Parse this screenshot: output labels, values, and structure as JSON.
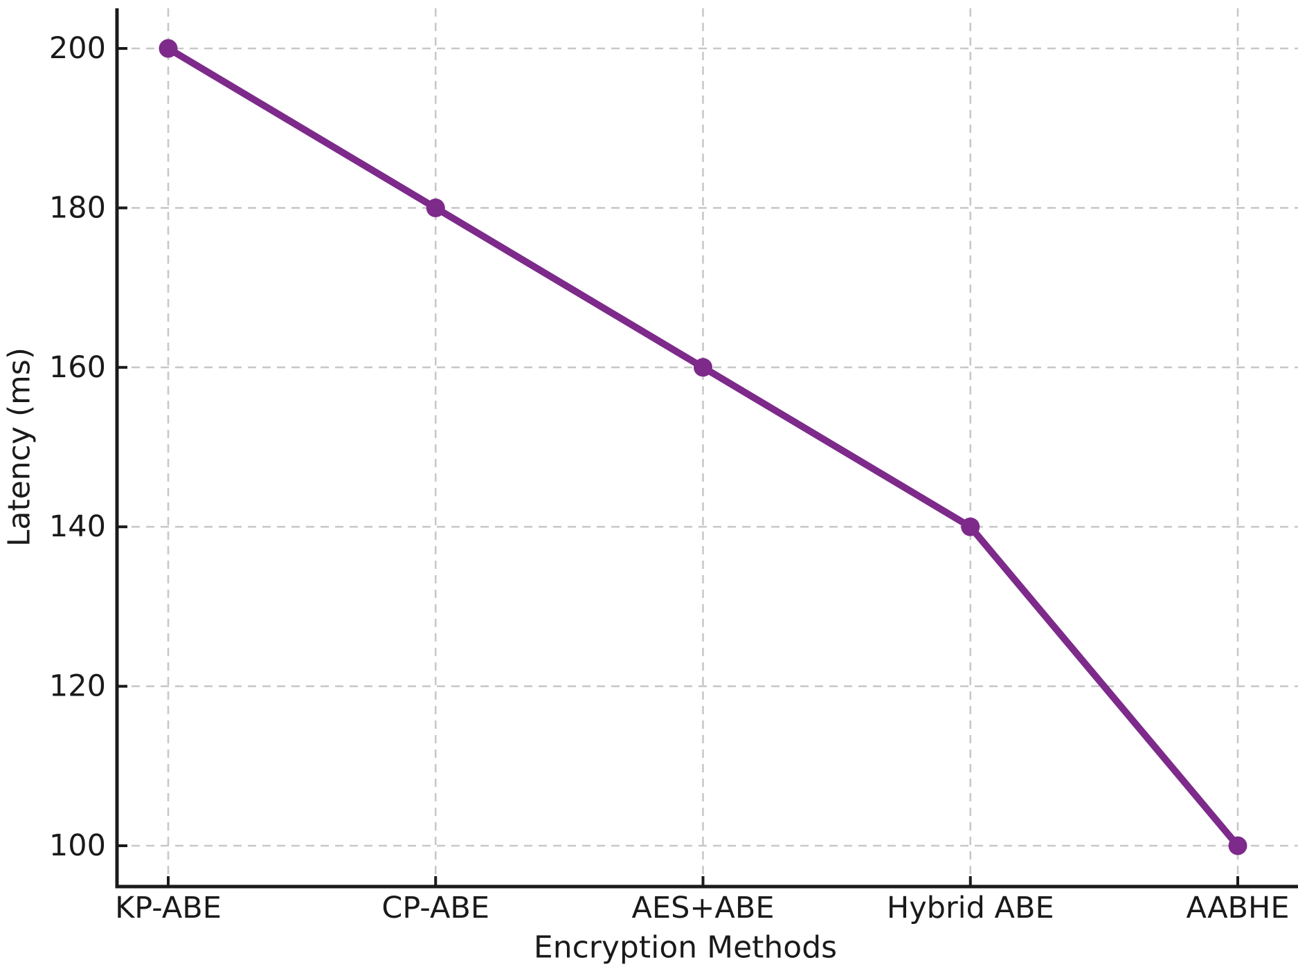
{
  "chart_data": {
    "type": "line",
    "title": "",
    "categories": [
      "KP-ABE",
      "CP-ABE",
      "AES+ABE",
      "Hybrid ABE",
      "AABHE"
    ],
    "series": [
      {
        "name": "Latency",
        "values": [
          200,
          180,
          160,
          140,
          100
        ]
      }
    ],
    "xlabel": "Encryption Methods",
    "ylabel": "Latency (ms)",
    "yticks": [
      100,
      120,
      140,
      160,
      180,
      200
    ],
    "ylim": [
      95,
      205.5
    ],
    "grid": true,
    "grid_style": "dashed",
    "legend": "none",
    "colors": {
      "line": "#7d2a8b",
      "marker": "#7d2a8b",
      "axis": "#1a1a1a",
      "grid": "#c8c8c8",
      "background": "#ffffff"
    }
  }
}
